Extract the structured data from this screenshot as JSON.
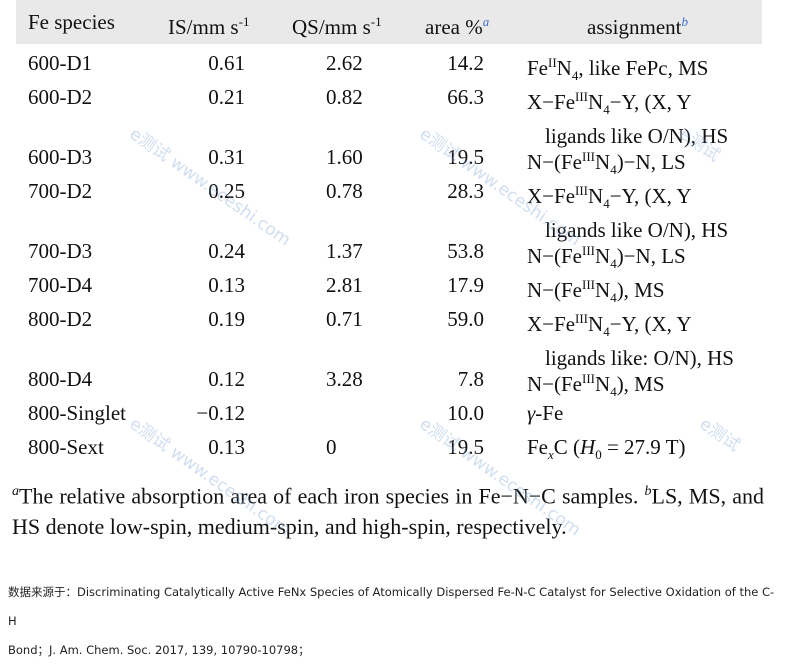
{
  "table": {
    "headers": {
      "species": "Fe species",
      "is": "IS/mm s",
      "is_exp": "-1",
      "qs": "QS/mm s",
      "qs_exp": "-1",
      "area": "area %",
      "area_note": "a",
      "assignment": "assignment",
      "assignment_note": "b"
    },
    "rows": [
      {
        "species": "600-D1",
        "is": "0.61",
        "qs": "2.62",
        "area": "14.2",
        "assign_l1": "FeIIN4, like FePc, MS",
        "assign_l2": ""
      },
      {
        "species": "600-D2",
        "is": "0.21",
        "qs": "0.82",
        "area": "66.3",
        "assign_l1": "X−FeIIIN4−Y, (X, Y",
        "assign_l2": "ligands like O/N), HS"
      },
      {
        "species": "600-D3",
        "is": "0.31",
        "qs": "1.60",
        "area": "19.5",
        "assign_l1": "N−(FeIIIN4)−N, LS",
        "assign_l2": ""
      },
      {
        "species": "700-D2",
        "is": "0.25",
        "qs": "0.78",
        "area": "28.3",
        "assign_l1": "X−FeIIIN4−Y, (X, Y",
        "assign_l2": "ligands like O/N), HS"
      },
      {
        "species": "700-D3",
        "is": "0.24",
        "qs": "1.37",
        "area": "53.8",
        "assign_l1": "N−(FeIIIN4)−N, LS",
        "assign_l2": ""
      },
      {
        "species": "700-D4",
        "is": "0.13",
        "qs": "2.81",
        "area": "17.9",
        "assign_l1": "N−(FeIIIN4), MS",
        "assign_l2": ""
      },
      {
        "species": "800-D2",
        "is": "0.19",
        "qs": "0.71",
        "area": "59.0",
        "assign_l1": "X−FeIIIN4−Y, (X, Y",
        "assign_l2": "ligands like: O/N), HS"
      },
      {
        "species": "800-D4",
        "is": "0.12",
        "qs": "3.28",
        "area": "7.8",
        "assign_l1": "N−(FeIIIN4), MS",
        "assign_l2": ""
      },
      {
        "species": "800-Singlet",
        "is": "−0.12",
        "qs": "",
        "area": "10.0",
        "assign_l1": "γ-Fe",
        "assign_l2": ""
      },
      {
        "species": "800-Sext",
        "is": "0.13",
        "qs": "0",
        "area": "19.5",
        "assign_l1": "FexC (H0 = 27.9 T)",
        "assign_l2": ""
      }
    ]
  },
  "footnotes": {
    "a_mark": "a",
    "a_text": "The relative absorption area of each iron species in Fe−N−C samples.",
    "b_mark": "b",
    "b_text": "LS, MS, and HS denote low-spin, medium-spin, and high-spin, respectively."
  },
  "source": {
    "line1": "数据来源于：Discriminating Catalytically Active FeNx Species of Atomically Dispersed Fe-N-C Catalyst for Selective Oxidation of the C-H",
    "line2": "Bond；J. Am. Chem. Soc. 2017, 139, 10790-10798；"
  },
  "watermarks": {
    "text1": "e测试",
    "text2": "www.eceshi.com"
  }
}
